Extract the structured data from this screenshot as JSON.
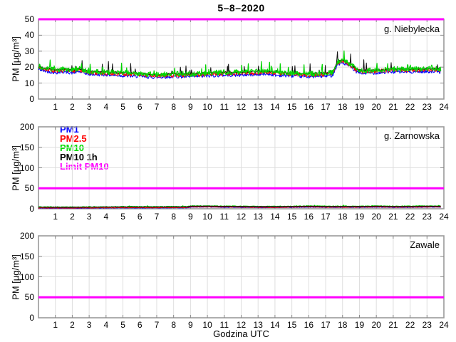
{
  "title": "5–8–2020",
  "xlabel": "Godzina UTC",
  "ylabel": "PM [µg/m³]",
  "legend": {
    "items": [
      {
        "label": "PM1",
        "color": "#0000ff"
      },
      {
        "label": "PM2.5",
        "color": "#ff0000"
      },
      {
        "label": "PM10",
        "color": "#00dd00"
      },
      {
        "label": "PM10 1h",
        "color": "#000000"
      },
      {
        "label": "Limit PM10",
        "color": "#ff00ff"
      }
    ]
  },
  "chart_data": [
    {
      "type": "line",
      "station": "g. Niebylecka",
      "xlim": [
        0,
        24
      ],
      "xticks": [
        1,
        2,
        3,
        4,
        5,
        6,
        7,
        8,
        9,
        10,
        11,
        12,
        13,
        14,
        15,
        16,
        17,
        18,
        19,
        20,
        21,
        22,
        23,
        24
      ],
      "ylim": [
        0,
        50
      ],
      "yticks": [
        0,
        10,
        20,
        30,
        40,
        50
      ],
      "grid": true,
      "limit_line": {
        "label": "Limit PM10",
        "value": 50,
        "color": "#ff00ff"
      },
      "seed": 42,
      "x_end": 23.85,
      "series": [
        {
          "name": "PM1",
          "color": "#0000ff",
          "base": "PM10",
          "offset": -1.8,
          "noise": 1.0,
          "spike_prob": 0,
          "spike_max": 0,
          "width": 1
        },
        {
          "name": "PM2.5",
          "color": "#ff0000",
          "base": "PM10",
          "offset": -0.7,
          "noise": 1.3,
          "spike_prob": 0.01,
          "spike_max": 2,
          "width": 1
        },
        {
          "name": "PM10 1h",
          "color": "#111111",
          "base": "PM10",
          "offset": 0.0,
          "noise": 0.5,
          "spike_prob": 0.045,
          "spike_max": 6.5,
          "width": 1
        },
        {
          "name": "PM10",
          "color": "#00d400",
          "noise": 1.6,
          "spike_prob": 0.05,
          "spike_max": 5,
          "width": 1.2,
          "points": [
            [
              0,
              20.5
            ],
            [
              0.3,
              19.5
            ],
            [
              1,
              18.3
            ],
            [
              1.5,
              18.8
            ],
            [
              2,
              18.2
            ],
            [
              2.4,
              19.0
            ],
            [
              3,
              17.3
            ],
            [
              4,
              17.0
            ],
            [
              5,
              16.4
            ],
            [
              6,
              16.0
            ],
            [
              6.5,
              15.6
            ],
            [
              7,
              15.4
            ],
            [
              8,
              15.8
            ],
            [
              9,
              15.8
            ],
            [
              10,
              16.2
            ],
            [
              11,
              16.8
            ],
            [
              12,
              16.8
            ],
            [
              13,
              17.2
            ],
            [
              13.6,
              17.5
            ],
            [
              14,
              16.8
            ],
            [
              15,
              16.3
            ],
            [
              16,
              15.8
            ],
            [
              16.5,
              16.0
            ],
            [
              17,
              16.2
            ],
            [
              17.4,
              16.6
            ],
            [
              17.7,
              23.5
            ],
            [
              18,
              24.5
            ],
            [
              18.4,
              22.5
            ],
            [
              18.8,
              19.0
            ],
            [
              19.2,
              17.8
            ],
            [
              20,
              18.2
            ],
            [
              21,
              18.8
            ],
            [
              22,
              18.8
            ],
            [
              23,
              19.0
            ],
            [
              23.5,
              19.2
            ],
            [
              23.85,
              18.6
            ]
          ]
        }
      ]
    },
    {
      "type": "line",
      "station": "g. Zarnowska",
      "xlim": [
        0,
        24
      ],
      "xticks": [
        1,
        2,
        3,
        4,
        5,
        6,
        7,
        8,
        9,
        10,
        11,
        12,
        13,
        14,
        15,
        16,
        17,
        18,
        19,
        20,
        21,
        22,
        23,
        24
      ],
      "ylim": [
        0,
        200
      ],
      "yticks": [
        0,
        50,
        100,
        150,
        200
      ],
      "grid": true,
      "limit_line": {
        "label": "Limit PM10",
        "value": 50,
        "color": "#ff00ff"
      },
      "seed": 77,
      "x_end": 23.85,
      "series": [
        {
          "name": "PM1",
          "color": "#0000ff",
          "base": "PM10",
          "offset": -3.0,
          "noise": 0.5,
          "spike_prob": 0,
          "spike_max": 0,
          "width": 1
        },
        {
          "name": "PM2.5",
          "color": "#ff0000",
          "base": "PM10",
          "offset": -2.4,
          "noise": 0.6,
          "spike_prob": 0,
          "spike_max": 0,
          "width": 1
        },
        {
          "name": "PM10",
          "color": "#00d400",
          "noise": 0.9,
          "spike_prob": 0.02,
          "spike_max": 2,
          "width": 1.2,
          "points": [
            [
              0,
              4.5
            ],
            [
              1,
              4.2
            ],
            [
              2,
              4.2
            ],
            [
              3,
              4.5
            ],
            [
              4,
              4.8
            ],
            [
              5,
              5.0
            ],
            [
              6,
              5.0
            ],
            [
              7,
              5.0
            ],
            [
              8,
              5.2
            ],
            [
              8.8,
              5.2
            ],
            [
              9,
              6.8
            ],
            [
              10,
              7.0
            ],
            [
              11,
              6.5
            ],
            [
              12,
              6.2
            ],
            [
              13,
              5.8
            ],
            [
              14,
              5.8
            ],
            [
              15,
              6.2
            ],
            [
              16,
              6.8
            ],
            [
              17,
              6.2
            ],
            [
              18,
              6.2
            ],
            [
              19,
              6.2
            ],
            [
              20,
              6.8
            ],
            [
              21,
              6.2
            ],
            [
              22,
              6.2
            ],
            [
              23,
              6.8
            ],
            [
              23.85,
              6.8
            ]
          ]
        },
        {
          "name": "PM10 1h",
          "color": "#111111",
          "base": "PM10",
          "offset": -0.6,
          "noise": 0.3,
          "spike_prob": 0,
          "spike_max": 0,
          "width": 1.2
        }
      ]
    },
    {
      "type": "line",
      "station": "Zawale",
      "xlim": [
        0,
        24
      ],
      "xticks": [
        1,
        2,
        3,
        4,
        5,
        6,
        7,
        8,
        9,
        10,
        11,
        12,
        13,
        14,
        15,
        16,
        17,
        18,
        19,
        20,
        21,
        22,
        23,
        24
      ],
      "ylim": [
        0,
        200
      ],
      "yticks": [
        0,
        50,
        100,
        150,
        200
      ],
      "grid": true,
      "limit_line": {
        "label": "Limit PM10",
        "value": 50,
        "color": "#ff00ff"
      },
      "seed": 5,
      "x_end": 23.85,
      "series": []
    }
  ]
}
